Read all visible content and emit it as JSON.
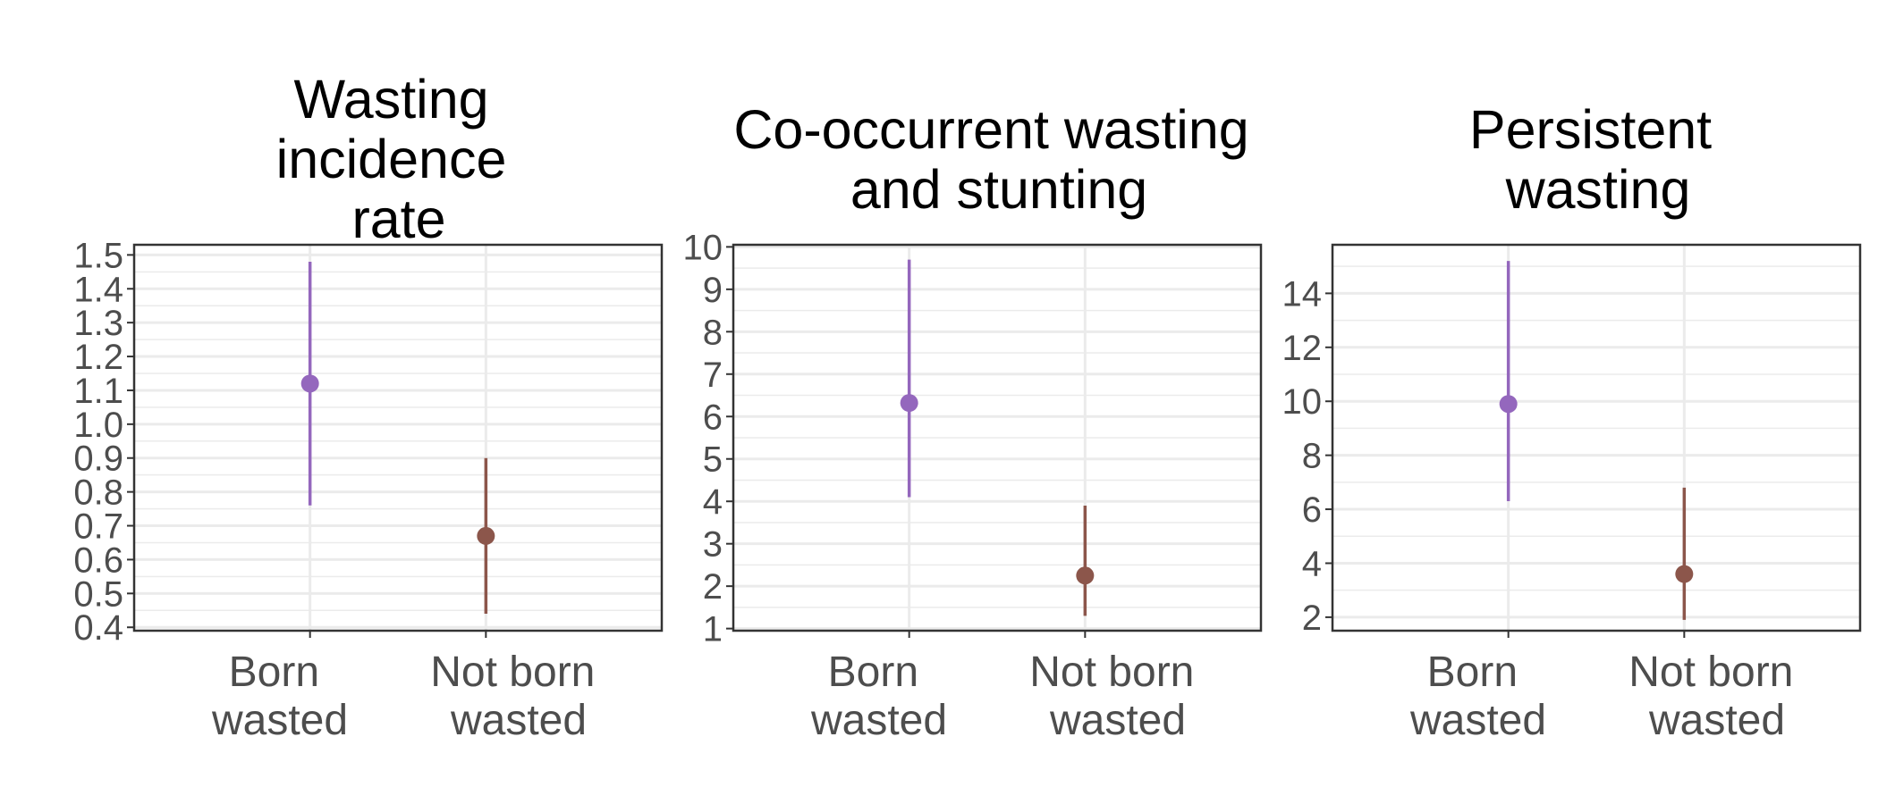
{
  "chart_data": [
    {
      "type": "scatter",
      "title_lines": [
        "Wasting",
        "incidence",
        "rate"
      ],
      "categories": [
        "Born wasted",
        "Not born wasted"
      ],
      "category_lines": [
        [
          "Born",
          "wasted"
        ],
        [
          "Not born",
          "wasted"
        ]
      ],
      "points": [
        {
          "category": "Born wasted",
          "estimate": 1.12,
          "lower": 0.76,
          "upper": 1.48,
          "color": "#9467bd"
        },
        {
          "category": "Not born wasted",
          "estimate": 0.67,
          "lower": 0.44,
          "upper": 0.9,
          "color": "#8c564b"
        }
      ],
      "ylim": [
        0.39,
        1.53
      ],
      "y_ticks": [
        0.4,
        0.5,
        0.6,
        0.7,
        0.8,
        0.9,
        1.0,
        1.1,
        1.2,
        1.3,
        1.4,
        1.5
      ],
      "y_tick_labels": [
        "0.4",
        "0.5",
        "0.6",
        "0.7",
        "0.8",
        "0.9",
        "1.0",
        "1.1",
        "1.2",
        "1.3",
        "1.4",
        "1.5"
      ],
      "y_minor_ticks": [
        0.45,
        0.55,
        0.65,
        0.75,
        0.85,
        0.95,
        1.05,
        1.15,
        1.25,
        1.35,
        1.45
      ],
      "grid": true
    },
    {
      "type": "scatter",
      "title_lines": [
        "Co-occurrent wasting",
        "and stunting"
      ],
      "categories": [
        "Born wasted",
        "Not born wasted"
      ],
      "category_lines": [
        [
          "Born",
          "wasted"
        ],
        [
          "Not born",
          "wasted"
        ]
      ],
      "points": [
        {
          "category": "Born wasted",
          "estimate": 6.32,
          "lower": 4.1,
          "upper": 9.7,
          "color": "#9467bd"
        },
        {
          "category": "Not born wasted",
          "estimate": 2.25,
          "lower": 1.3,
          "upper": 3.9,
          "color": "#8c564b"
        }
      ],
      "ylim": [
        0.95,
        10.05
      ],
      "y_ticks": [
        1,
        2,
        3,
        4,
        5,
        6,
        7,
        8,
        9,
        10
      ],
      "y_tick_labels": [
        "1",
        "2",
        "3",
        "4",
        "5",
        "6",
        "7",
        "8",
        "9",
        "10"
      ],
      "y_minor_ticks": [
        1.5,
        2.5,
        3.5,
        4.5,
        5.5,
        6.5,
        7.5,
        8.5,
        9.5
      ],
      "grid": true
    },
    {
      "type": "scatter",
      "title_lines": [
        "Persistent",
        "wasting"
      ],
      "categories": [
        "Born wasted",
        "Not born wasted"
      ],
      "category_lines": [
        [
          "Born",
          "wasted"
        ],
        [
          "Not born",
          "wasted"
        ]
      ],
      "points": [
        {
          "category": "Born wasted",
          "estimate": 9.9,
          "lower": 6.3,
          "upper": 15.2,
          "color": "#9467bd"
        },
        {
          "category": "Not born wasted",
          "estimate": 3.6,
          "lower": 1.9,
          "upper": 6.8,
          "color": "#8c564b"
        }
      ],
      "ylim": [
        1.5,
        15.8
      ],
      "y_ticks": [
        2,
        4,
        6,
        8,
        10,
        12,
        14
      ],
      "y_tick_labels": [
        "2",
        "4",
        "6",
        "8",
        "10",
        "12",
        "14"
      ],
      "y_minor_ticks": [
        3,
        5,
        7,
        9,
        11,
        13,
        15
      ],
      "grid": true
    }
  ]
}
